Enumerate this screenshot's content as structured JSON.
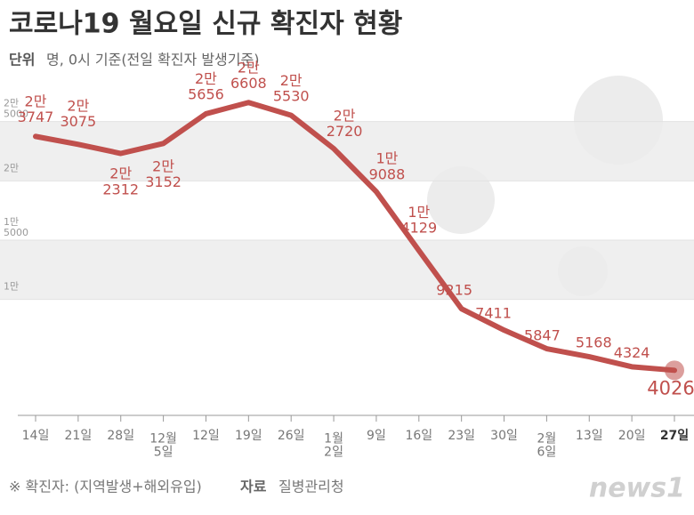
{
  "chart_data": {
    "type": "line",
    "title": "코로나19 월요일 신규 확진자 현황",
    "unit_label": "단위",
    "unit": "명, 0시 기준(전일 확진자 발생기준)",
    "categories": [
      "14일",
      "21일",
      "28일",
      "12월\n5일",
      "12일",
      "19일",
      "26일",
      "1월\n2일",
      "9일",
      "16일",
      "23일",
      "30일",
      "2월\n6일",
      "13일",
      "20일",
      "27일"
    ],
    "series": [
      {
        "name": "신규 확진자",
        "color": "#c0504d",
        "values": [
          23747,
          23075,
          22312,
          23152,
          25656,
          26608,
          25530,
          22720,
          19088,
          14129,
          9215,
          7411,
          5847,
          5168,
          4324,
          4026
        ],
        "value_labels": [
          "2만\n3747",
          "2만\n3075",
          "2만\n2312",
          "2만\n3152",
          "2만\n5656",
          "2만\n6608",
          "2만\n5530",
          "2만\n2720",
          "1만\n9088",
          "1만\n4129",
          "9215",
          "7411",
          "5847",
          "5168",
          "4324",
          "4026"
        ]
      }
    ],
    "ylim": [
      0,
      30000
    ],
    "yticks": [
      {
        "value": 25000,
        "label": "2만\n5000"
      },
      {
        "value": 20000,
        "label": "2만"
      },
      {
        "value": 15000,
        "label": "1만\n5000"
      },
      {
        "value": 10000,
        "label": "1만"
      }
    ],
    "grid": true,
    "footnote": "※ 확진자: (지역발생+해외유입)",
    "source_label": "자료",
    "source": "질병관리청",
    "logo": "news1"
  }
}
